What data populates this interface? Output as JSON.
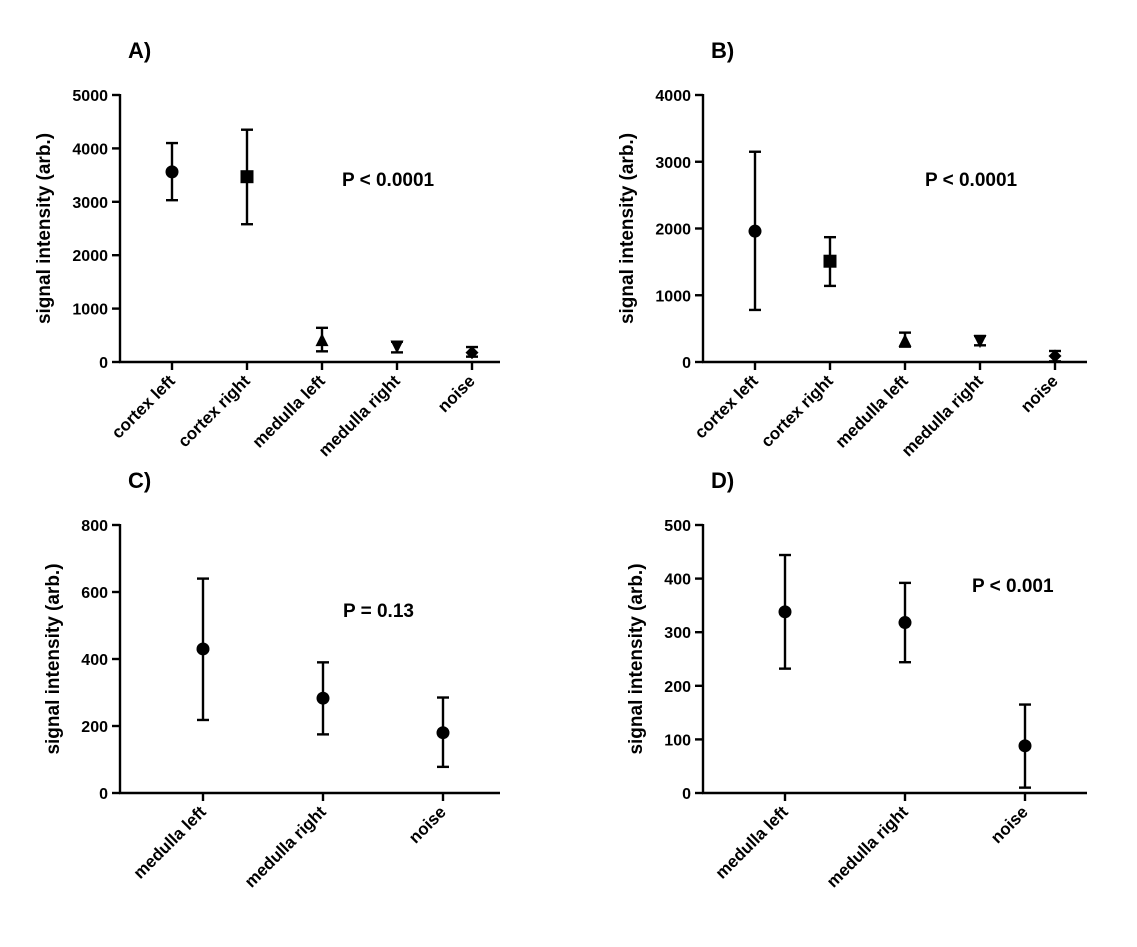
{
  "chart_data": [
    {
      "type": "scatter",
      "panel": "A)",
      "annotation": "P < 0.0001",
      "ylabel": "signal intensity (arb.)",
      "xlabel": "",
      "ylim": [
        0,
        5000
      ],
      "yticks": [
        0,
        1000,
        2000,
        3000,
        4000,
        5000
      ],
      "categories": [
        "cortex left",
        "cortex right",
        "medulla left",
        "medulla right",
        "noise"
      ],
      "markers": [
        "circle",
        "square",
        "triangle-up",
        "triangle-down",
        "diamond"
      ],
      "values": [
        3560,
        3470,
        400,
        300,
        175
      ],
      "error_low": [
        3030,
        2580,
        200,
        180,
        100
      ],
      "error_high": [
        4100,
        4350,
        640,
        380,
        280
      ]
    },
    {
      "type": "scatter",
      "panel": "B)",
      "annotation": "P < 0.0001",
      "ylabel": "signal intensity (arb.)",
      "xlabel": "",
      "ylim": [
        0,
        4000
      ],
      "yticks": [
        0,
        1000,
        2000,
        3000,
        4000
      ],
      "categories": [
        "cortex left",
        "cortex right",
        "medulla left",
        "medulla right",
        "noise"
      ],
      "markers": [
        "circle",
        "square",
        "triangle-up",
        "triangle-down",
        "diamond"
      ],
      "values": [
        1960,
        1510,
        310,
        320,
        90
      ],
      "error_low": [
        780,
        1140,
        230,
        250,
        10
      ],
      "error_high": [
        3150,
        1870,
        440,
        390,
        165
      ]
    },
    {
      "type": "scatter",
      "panel": "C)",
      "annotation": "P = 0.13",
      "ylabel": "signal intensity (arb.)",
      "xlabel": "",
      "ylim": [
        0,
        800
      ],
      "yticks": [
        0,
        200,
        400,
        600,
        800
      ],
      "categories": [
        "medulla left",
        "medulla right",
        "noise"
      ],
      "markers": [
        "circle",
        "circle",
        "circle"
      ],
      "values": [
        430,
        283,
        180
      ],
      "error_low": [
        218,
        175,
        78
      ],
      "error_high": [
        640,
        390,
        285
      ]
    },
    {
      "type": "scatter",
      "panel": "D)",
      "annotation": "P < 0.001",
      "ylabel": "signal intensity (arb.)",
      "xlabel": "",
      "ylim": [
        0,
        500
      ],
      "yticks": [
        0,
        100,
        200,
        300,
        400,
        500
      ],
      "categories": [
        "medulla left",
        "medulla right",
        "noise"
      ],
      "markers": [
        "circle",
        "circle",
        "circle"
      ],
      "values": [
        338,
        318,
        88
      ],
      "error_low": [
        232,
        244,
        10
      ],
      "error_high": [
        444,
        392,
        165
      ]
    }
  ]
}
